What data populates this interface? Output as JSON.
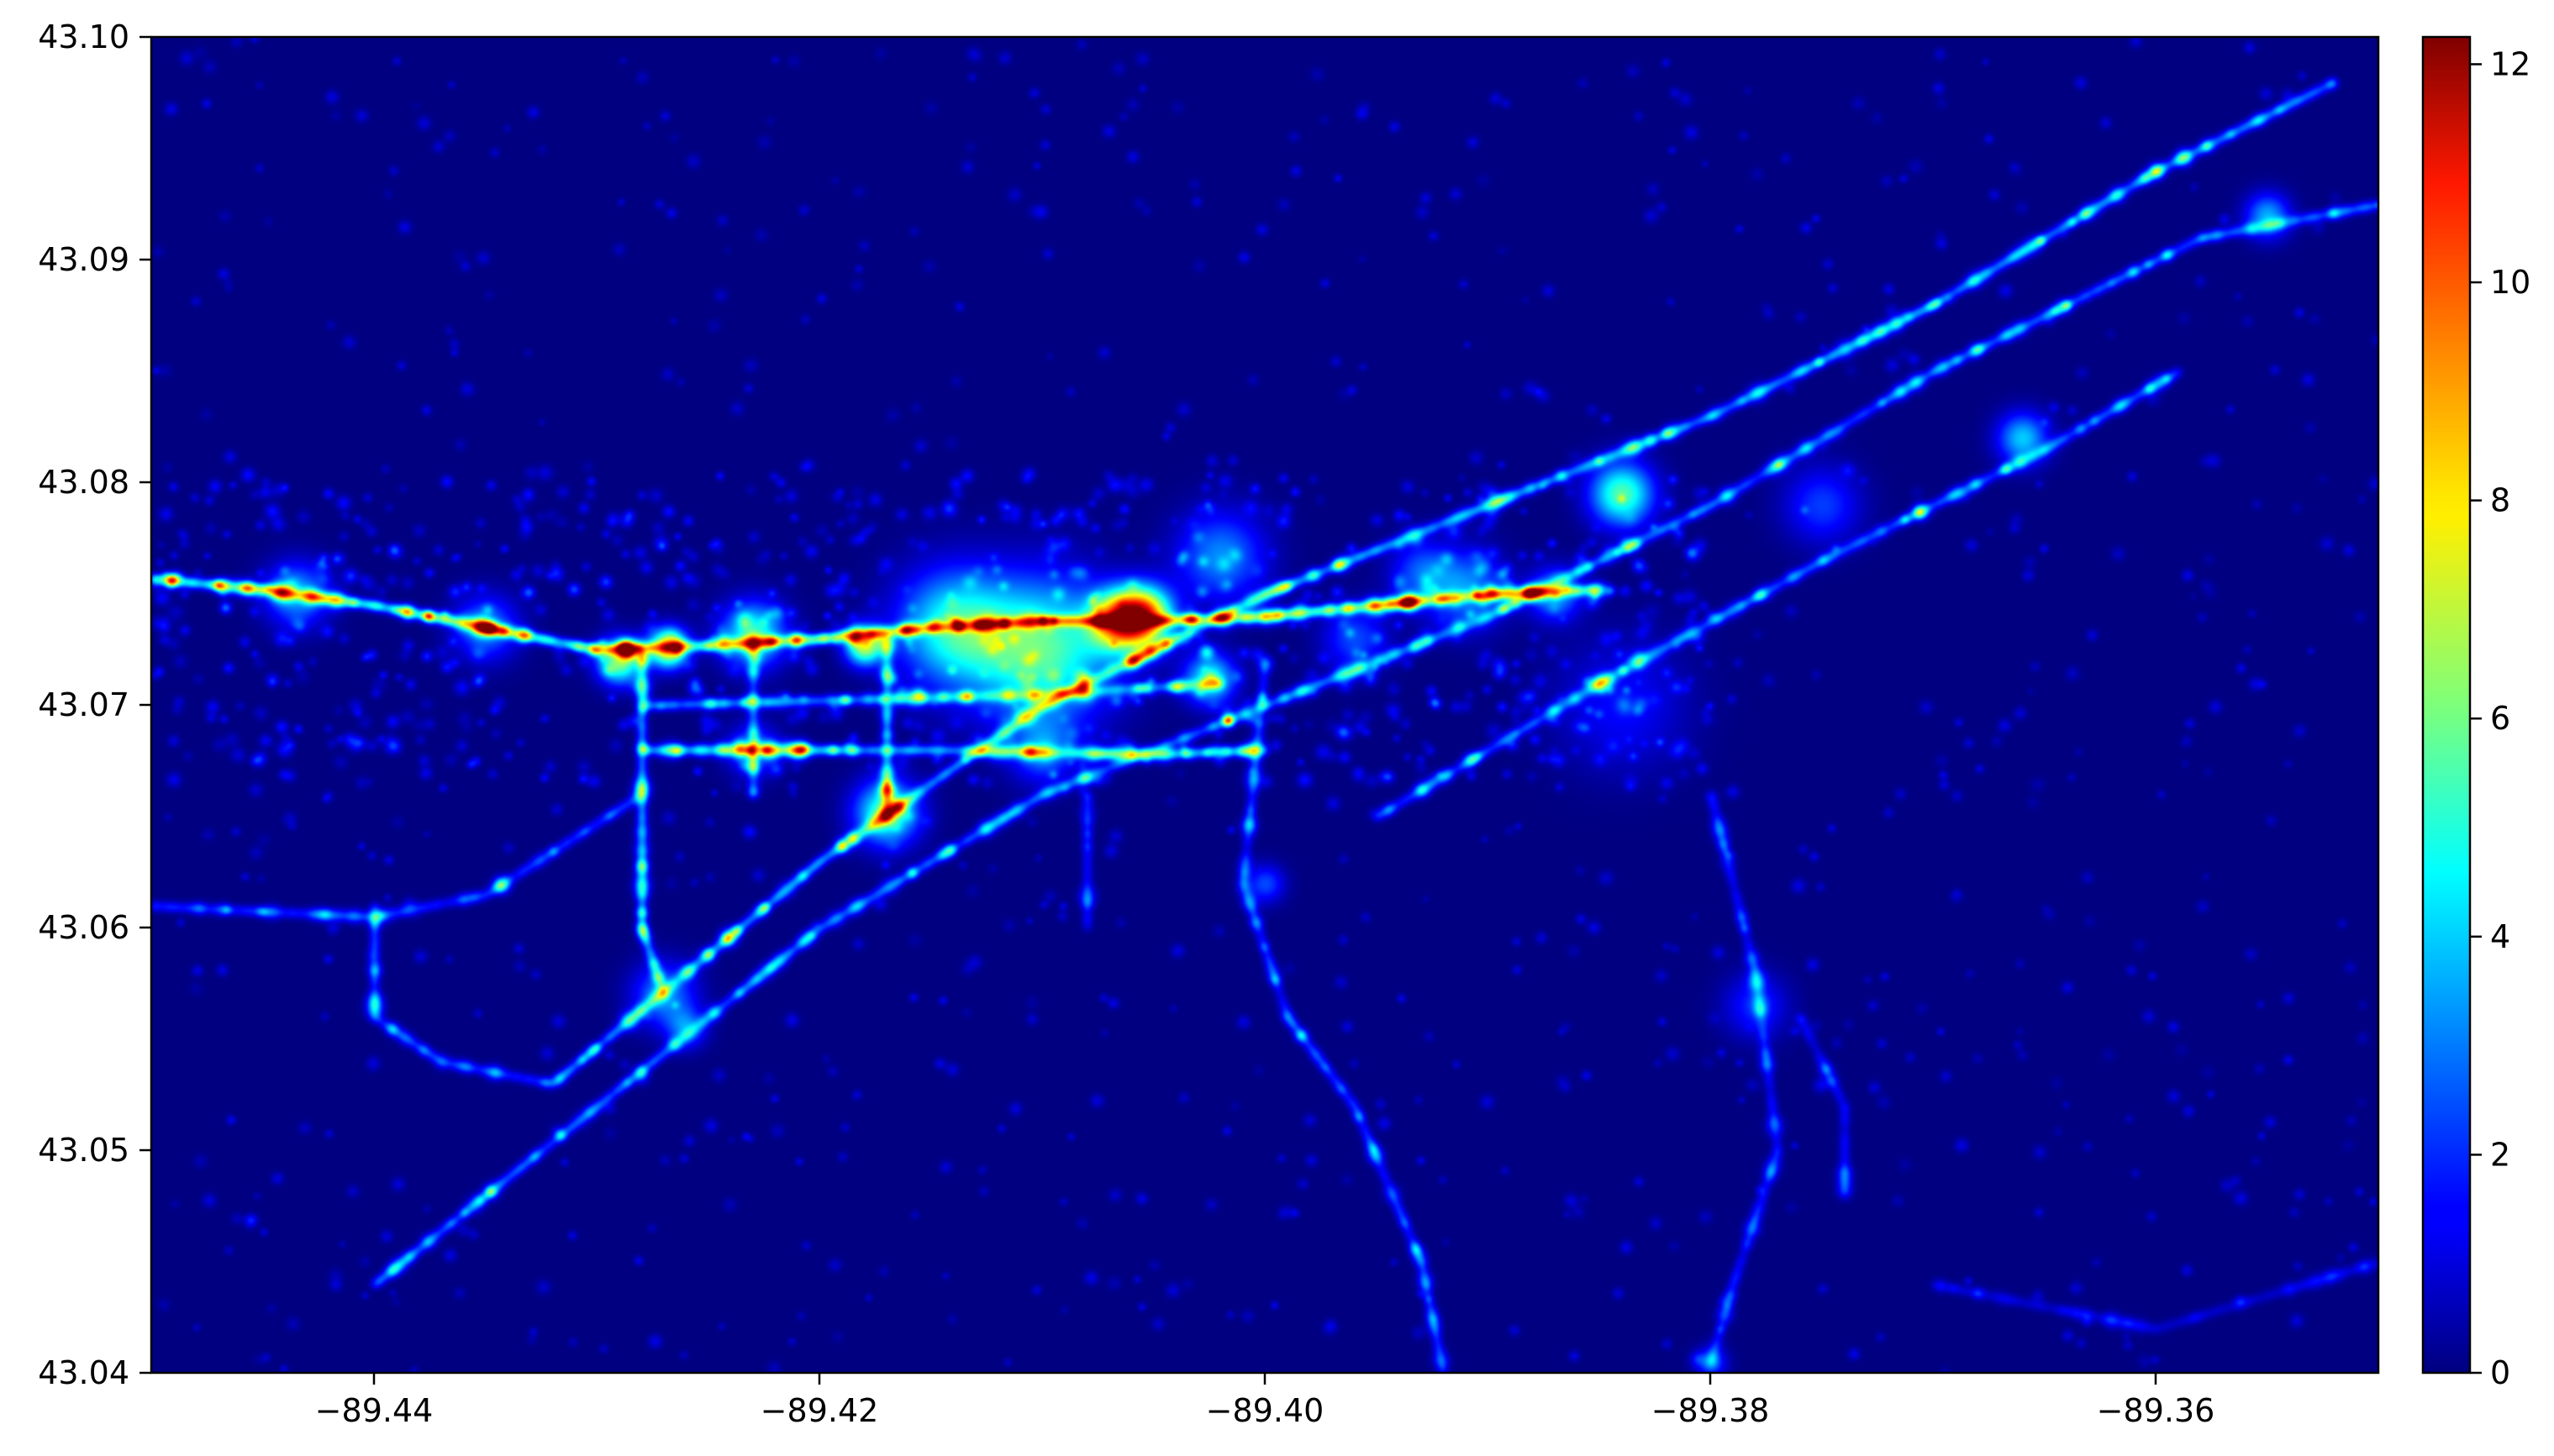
{
  "chart_data": {
    "type": "heatmap",
    "title": "",
    "xlabel": "",
    "ylabel": "",
    "xlim": [
      -89.45,
      -89.35
    ],
    "ylim": [
      43.04,
      43.1
    ],
    "x_ticks": [
      -89.44,
      -89.42,
      -89.4,
      -89.38,
      -89.36
    ],
    "x_tick_labels": [
      "−89.44",
      "−89.42",
      "−89.40",
      "−89.38",
      "−89.36"
    ],
    "y_ticks": [
      43.04,
      43.05,
      43.06,
      43.07,
      43.08,
      43.09,
      43.1
    ],
    "y_tick_labels": [
      "43.04",
      "43.05",
      "43.06",
      "43.07",
      "43.08",
      "43.09",
      "43.10"
    ],
    "grid": false,
    "colormap": "jet",
    "colorbar": {
      "range": [
        0,
        12.25
      ],
      "ticks": [
        0,
        2,
        4,
        6,
        8,
        10,
        12
      ],
      "tick_labels": [
        "0",
        "2",
        "4",
        "6",
        "8",
        "10",
        "12"
      ]
    },
    "background_value": 0,
    "corridors": [
      {
        "points": [
          [
            -89.45,
            43.0757
          ],
          [
            -89.445,
            43.0752
          ],
          [
            -89.44,
            43.0745
          ],
          [
            -89.435,
            43.0735
          ],
          [
            -89.43,
            43.0725
          ],
          [
            -89.425,
            43.0727
          ],
          [
            -89.42,
            43.073
          ],
          [
            -89.415,
            43.0735
          ],
          [
            -89.41,
            43.0738
          ],
          [
            -89.405,
            43.0738
          ],
          [
            -89.4,
            43.074
          ],
          [
            -89.395,
            43.0745
          ],
          [
            -89.39,
            43.075
          ],
          [
            -89.385,
            43.0752
          ]
        ],
        "intensity": 2.5
      },
      {
        "points": [
          [
            -89.432,
            43.053
          ],
          [
            -89.42,
            43.063
          ],
          [
            -89.41,
            43.07
          ],
          [
            -89.4,
            43.075
          ],
          [
            -89.39,
            43.079
          ],
          [
            -89.38,
            43.083
          ],
          [
            -89.37,
            43.088
          ],
          [
            -89.36,
            43.094
          ],
          [
            -89.352,
            43.098
          ]
        ],
        "intensity": 1.6
      },
      {
        "points": [
          [
            -89.44,
            43.044
          ],
          [
            -89.43,
            43.052
          ],
          [
            -89.42,
            43.06
          ],
          [
            -89.41,
            43.066
          ],
          [
            -89.4,
            43.07
          ],
          [
            -89.39,
            43.074
          ],
          [
            -89.38,
            43.079
          ],
          [
            -89.37,
            43.085
          ],
          [
            -89.358,
            43.091
          ],
          [
            -89.35,
            43.0925
          ]
        ],
        "intensity": 1.3
      },
      {
        "points": [
          [
            -89.395,
            43.065
          ],
          [
            -89.385,
            43.071
          ],
          [
            -89.375,
            43.0765
          ],
          [
            -89.365,
            43.0815
          ],
          [
            -89.359,
            43.085
          ]
        ],
        "intensity": 1.2
      },
      {
        "points": [
          [
            -89.45,
            43.061
          ],
          [
            -89.44,
            43.0605
          ],
          [
            -89.435,
            43.0615
          ],
          [
            -89.428,
            43.066
          ]
        ],
        "intensity": 1.0
      },
      {
        "points": [
          [
            -89.428,
            43.0725
          ],
          [
            -89.428,
            43.06
          ],
          [
            -89.427,
            43.057
          ]
        ],
        "intensity": 1.6
      },
      {
        "points": [
          [
            -89.423,
            43.073
          ],
          [
            -89.423,
            43.066
          ]
        ],
        "intensity": 1.2
      },
      {
        "points": [
          [
            -89.417,
            43.073
          ],
          [
            -89.417,
            43.065
          ]
        ],
        "intensity": 1.6
      },
      {
        "points": [
          [
            -89.428,
            43.068
          ],
          [
            -89.415,
            43.068
          ],
          [
            -89.405,
            43.0678
          ],
          [
            -89.4,
            43.068
          ]
        ],
        "intensity": 1.8
      },
      {
        "points": [
          [
            -89.428,
            43.07
          ],
          [
            -89.41,
            43.0705
          ],
          [
            -89.402,
            43.071
          ]
        ],
        "intensity": 1.4
      },
      {
        "points": [
          [
            -89.44,
            43.061
          ],
          [
            -89.44,
            43.056
          ],
          [
            -89.437,
            43.054
          ],
          [
            -89.432,
            43.053
          ]
        ],
        "intensity": 1.0
      },
      {
        "points": [
          [
            -89.4,
            43.072
          ],
          [
            -89.401,
            43.062
          ],
          [
            -89.399,
            43.056
          ],
          [
            -89.396,
            43.052
          ],
          [
            -89.393,
            43.045
          ],
          [
            -89.392,
            43.04
          ]
        ],
        "intensity": 1.0
      },
      {
        "points": [
          [
            -89.38,
            43.066
          ],
          [
            -89.378,
            43.058
          ],
          [
            -89.377,
            43.05
          ],
          [
            -89.379,
            43.044
          ],
          [
            -89.38,
            43.0405
          ]
        ],
        "intensity": 0.8
      },
      {
        "points": [
          [
            -89.376,
            43.056
          ],
          [
            -89.374,
            43.052
          ],
          [
            -89.374,
            43.048
          ]
        ],
        "intensity": 0.7
      },
      {
        "points": [
          [
            -89.37,
            43.044
          ],
          [
            -89.36,
            43.042
          ],
          [
            -89.35,
            43.045
          ]
        ],
        "intensity": 0.5
      },
      {
        "points": [
          [
            -89.408,
            43.066
          ],
          [
            -89.408,
            43.06
          ]
        ],
        "intensity": 0.8
      }
    ],
    "hotspots": [
      {
        "x": -89.4055,
        "y": 43.074,
        "value": 12.2,
        "r": 0.0009
      },
      {
        "x": -89.4067,
        "y": 43.0738,
        "value": 9.0,
        "r": 0.0009
      },
      {
        "x": -89.4268,
        "y": 43.0726,
        "value": 10.5,
        "r": 0.0006
      },
      {
        "x": -89.429,
        "y": 43.072,
        "value": 8.0,
        "r": 0.0007
      },
      {
        "x": -89.418,
        "y": 43.0727,
        "value": 8.5,
        "r": 0.0006
      },
      {
        "x": -89.41,
        "y": 43.0725,
        "value": 7.0,
        "r": 0.0022
      },
      {
        "x": -89.414,
        "y": 43.0735,
        "value": 6.0,
        "r": 0.0018
      },
      {
        "x": -89.423,
        "y": 43.0732,
        "value": 6.5,
        "r": 0.001
      },
      {
        "x": -89.417,
        "y": 43.0652,
        "value": 7.0,
        "r": 0.001
      },
      {
        "x": -89.384,
        "y": 43.0795,
        "value": 7.0,
        "r": 0.001
      },
      {
        "x": -89.4025,
        "y": 43.0712,
        "value": 6.0,
        "r": 0.0008
      },
      {
        "x": -89.366,
        "y": 43.082,
        "value": 5.0,
        "r": 0.0008
      },
      {
        "x": -89.387,
        "y": 43.075,
        "value": 4.5,
        "r": 0.0008
      },
      {
        "x": -89.355,
        "y": 43.092,
        "value": 4.5,
        "r": 0.0007
      },
      {
        "x": -89.427,
        "y": 43.057,
        "value": 4.0,
        "r": 0.001
      },
      {
        "x": -89.4435,
        "y": 43.075,
        "value": 4.5,
        "r": 0.001
      },
      {
        "x": -89.402,
        "y": 43.0767,
        "value": 4.0,
        "r": 0.0014
      },
      {
        "x": -89.391,
        "y": 43.0752,
        "value": 4.0,
        "r": 0.0012
      },
      {
        "x": -89.435,
        "y": 43.0735,
        "value": 4.0,
        "r": 0.001
      },
      {
        "x": -89.41,
        "y": 43.068,
        "value": 3.5,
        "r": 0.001
      },
      {
        "x": -89.423,
        "y": 43.068,
        "value": 3.5,
        "r": 0.0008
      },
      {
        "x": -89.384,
        "y": 43.07,
        "value": 2.0,
        "r": 0.002
      },
      {
        "x": -89.4,
        "y": 43.062,
        "value": 3.0,
        "r": 0.0006
      },
      {
        "x": -89.426,
        "y": 43.0555,
        "value": 3.5,
        "r": 0.0006
      },
      {
        "x": -89.38,
        "y": 43.0405,
        "value": 3.0,
        "r": 0.0005
      },
      {
        "x": -89.393,
        "y": 43.076,
        "value": 3.0,
        "r": 0.001
      },
      {
        "x": -89.396,
        "y": 43.073,
        "value": 3.0,
        "r": 0.001
      },
      {
        "x": -89.375,
        "y": 43.079,
        "value": 2.8,
        "r": 0.0012
      },
      {
        "x": -89.378,
        "y": 43.0565,
        "value": 2.5,
        "r": 0.001
      }
    ]
  }
}
